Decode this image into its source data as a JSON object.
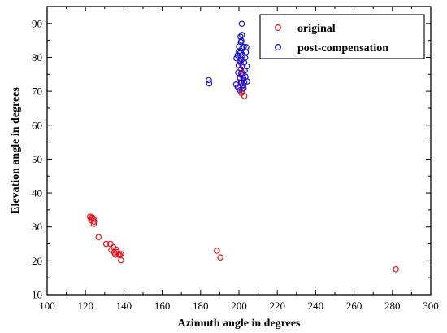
{
  "chart_data": {
    "type": "scatter",
    "title": "",
    "xlabel": "Azimuth angle in degrees",
    "ylabel": "Elevation angle in degrees",
    "xlim": [
      100,
      300
    ],
    "ylim": [
      10,
      95
    ],
    "xticks": [
      100,
      120,
      140,
      160,
      180,
      200,
      220,
      240,
      260,
      280,
      300
    ],
    "yticks": [
      10,
      20,
      30,
      40,
      50,
      60,
      70,
      80,
      90
    ],
    "grid": false,
    "legend_position": "top-right",
    "marker": "open-circle",
    "series": [
      {
        "name": "original",
        "color": "#e8141b",
        "points": [
          [
            122.3,
            33.0
          ],
          [
            122.8,
            32.6
          ],
          [
            123.5,
            32.8
          ],
          [
            123.0,
            32.0
          ],
          [
            124.2,
            32.4
          ],
          [
            124.5,
            31.6
          ],
          [
            124.3,
            30.9
          ],
          [
            126.8,
            27.0
          ],
          [
            130.8,
            25.0
          ],
          [
            133.0,
            25.0
          ],
          [
            133.5,
            23.2
          ],
          [
            134.5,
            24.0
          ],
          [
            135.0,
            22.5
          ],
          [
            135.5,
            21.8
          ],
          [
            136.0,
            23.3
          ],
          [
            136.5,
            22.6
          ],
          [
            137.2,
            21.8
          ],
          [
            137.8,
            21.7
          ],
          [
            138.5,
            22.0
          ],
          [
            138.5,
            20.2
          ],
          [
            188.5,
            23.0
          ],
          [
            190.3,
            21.0
          ],
          [
            281.8,
            17.5
          ],
          [
            200.2,
            71.0
          ],
          [
            200.6,
            73.8
          ],
          [
            201.0,
            76.5
          ],
          [
            201.3,
            69.5
          ],
          [
            201.5,
            72.6
          ],
          [
            201.8,
            70.2
          ],
          [
            202.0,
            74.6
          ],
          [
            202.3,
            71.8
          ],
          [
            202.8,
            68.6
          ],
          [
            200.9,
            78.4
          ],
          [
            201.6,
            75.5
          ]
        ]
      },
      {
        "name": "post-compensation",
        "color": "#1414e0",
        "points": [
          [
            184.3,
            73.3
          ],
          [
            184.5,
            72.3
          ],
          [
            198.5,
            72.0
          ],
          [
            198.7,
            79.7
          ],
          [
            199.3,
            80.6
          ],
          [
            199.6,
            75.5
          ],
          [
            199.4,
            71.2
          ],
          [
            199.8,
            77.7
          ],
          [
            200.0,
            83.2
          ],
          [
            200.4,
            78.9
          ],
          [
            200.3,
            74.1
          ],
          [
            200.6,
            81.2
          ],
          [
            200.8,
            86.1
          ],
          [
            201.0,
            84.5
          ],
          [
            201.2,
            75.2
          ],
          [
            201.1,
            72.6
          ],
          [
            201.4,
            79.3
          ],
          [
            201.5,
            89.9
          ],
          [
            201.7,
            82.7
          ],
          [
            201.6,
            86.6
          ],
          [
            201.9,
            77.4
          ],
          [
            202.0,
            80.7
          ],
          [
            202.2,
            74.0
          ],
          [
            202.1,
            71.9
          ],
          [
            202.5,
            83.1
          ],
          [
            202.7,
            78.5
          ],
          [
            202.8,
            72.7
          ],
          [
            203.0,
            76.1
          ],
          [
            203.2,
            79.9
          ],
          [
            203.4,
            74.3
          ],
          [
            203.6,
            81.5
          ],
          [
            203.8,
            83.0
          ],
          [
            204.1,
            77.4
          ],
          [
            204.3,
            72.9
          ],
          [
            200.5,
            70.3
          ],
          [
            202.4,
            70.9
          ],
          [
            199.9,
            81.8
          ],
          [
            201.3,
            84.9
          ]
        ]
      }
    ]
  }
}
